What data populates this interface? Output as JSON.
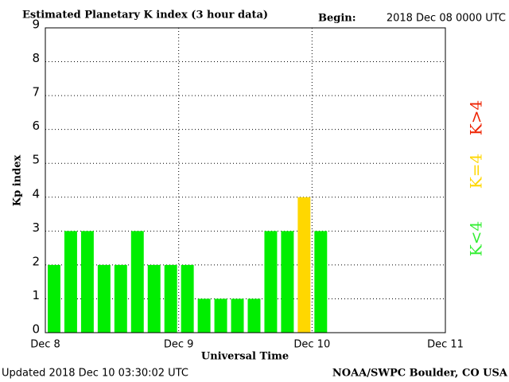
{
  "chart_data": {
    "type": "bar",
    "title": "Estimated Planetary K index (3 hour data)",
    "begin_label": "Begin:",
    "begin": "2018 Dec 08 0000 UTC",
    "x_label": "Universal Time",
    "y_label": "Kp index",
    "footer_left": "Updated 2018 Dec 10 03:30:02 UTC",
    "footer_right": "NOAA/SWPC Boulder, CO USA",
    "x": [
      0,
      3,
      6,
      9,
      12,
      15,
      18,
      21,
      24,
      27,
      30,
      33,
      36,
      39,
      42,
      45,
      48
    ],
    "series": [
      {
        "values": [
          2,
          3,
          3,
          2,
          2,
          3,
          2,
          2,
          2,
          1,
          1,
          1,
          1,
          3,
          3,
          4,
          3
        ],
        "colors": [
          "#00ee00",
          "#00ee00",
          "#00ee00",
          "#00ee00",
          "#00ee00",
          "#00ee00",
          "#00ee00",
          "#00ee00",
          "#00ee00",
          "#00ee00",
          "#00ee00",
          "#00ee00",
          "#00ee00",
          "#00ee00",
          "#00ee00",
          "#ffd700",
          "#00ee00"
        ]
      }
    ],
    "xlim": [
      0,
      72
    ],
    "xticks": [
      {
        "value": 0,
        "label": "Dec 8"
      },
      {
        "value": 24,
        "label": "Dec 9"
      },
      {
        "value": 48,
        "label": "Dec 10"
      },
      {
        "value": 72,
        "label": "Dec 11"
      }
    ],
    "ylim": [
      0,
      9
    ],
    "yticks": [
      0,
      1,
      2,
      3,
      4,
      5,
      6,
      7,
      8,
      9
    ],
    "grid": true,
    "legend": [
      {
        "label": "K<4",
        "color": "#33ee33"
      },
      {
        "label": "K=4",
        "color": "#ffd700"
      },
      {
        "label": "K>4",
        "color": "#ee2200"
      }
    ]
  }
}
